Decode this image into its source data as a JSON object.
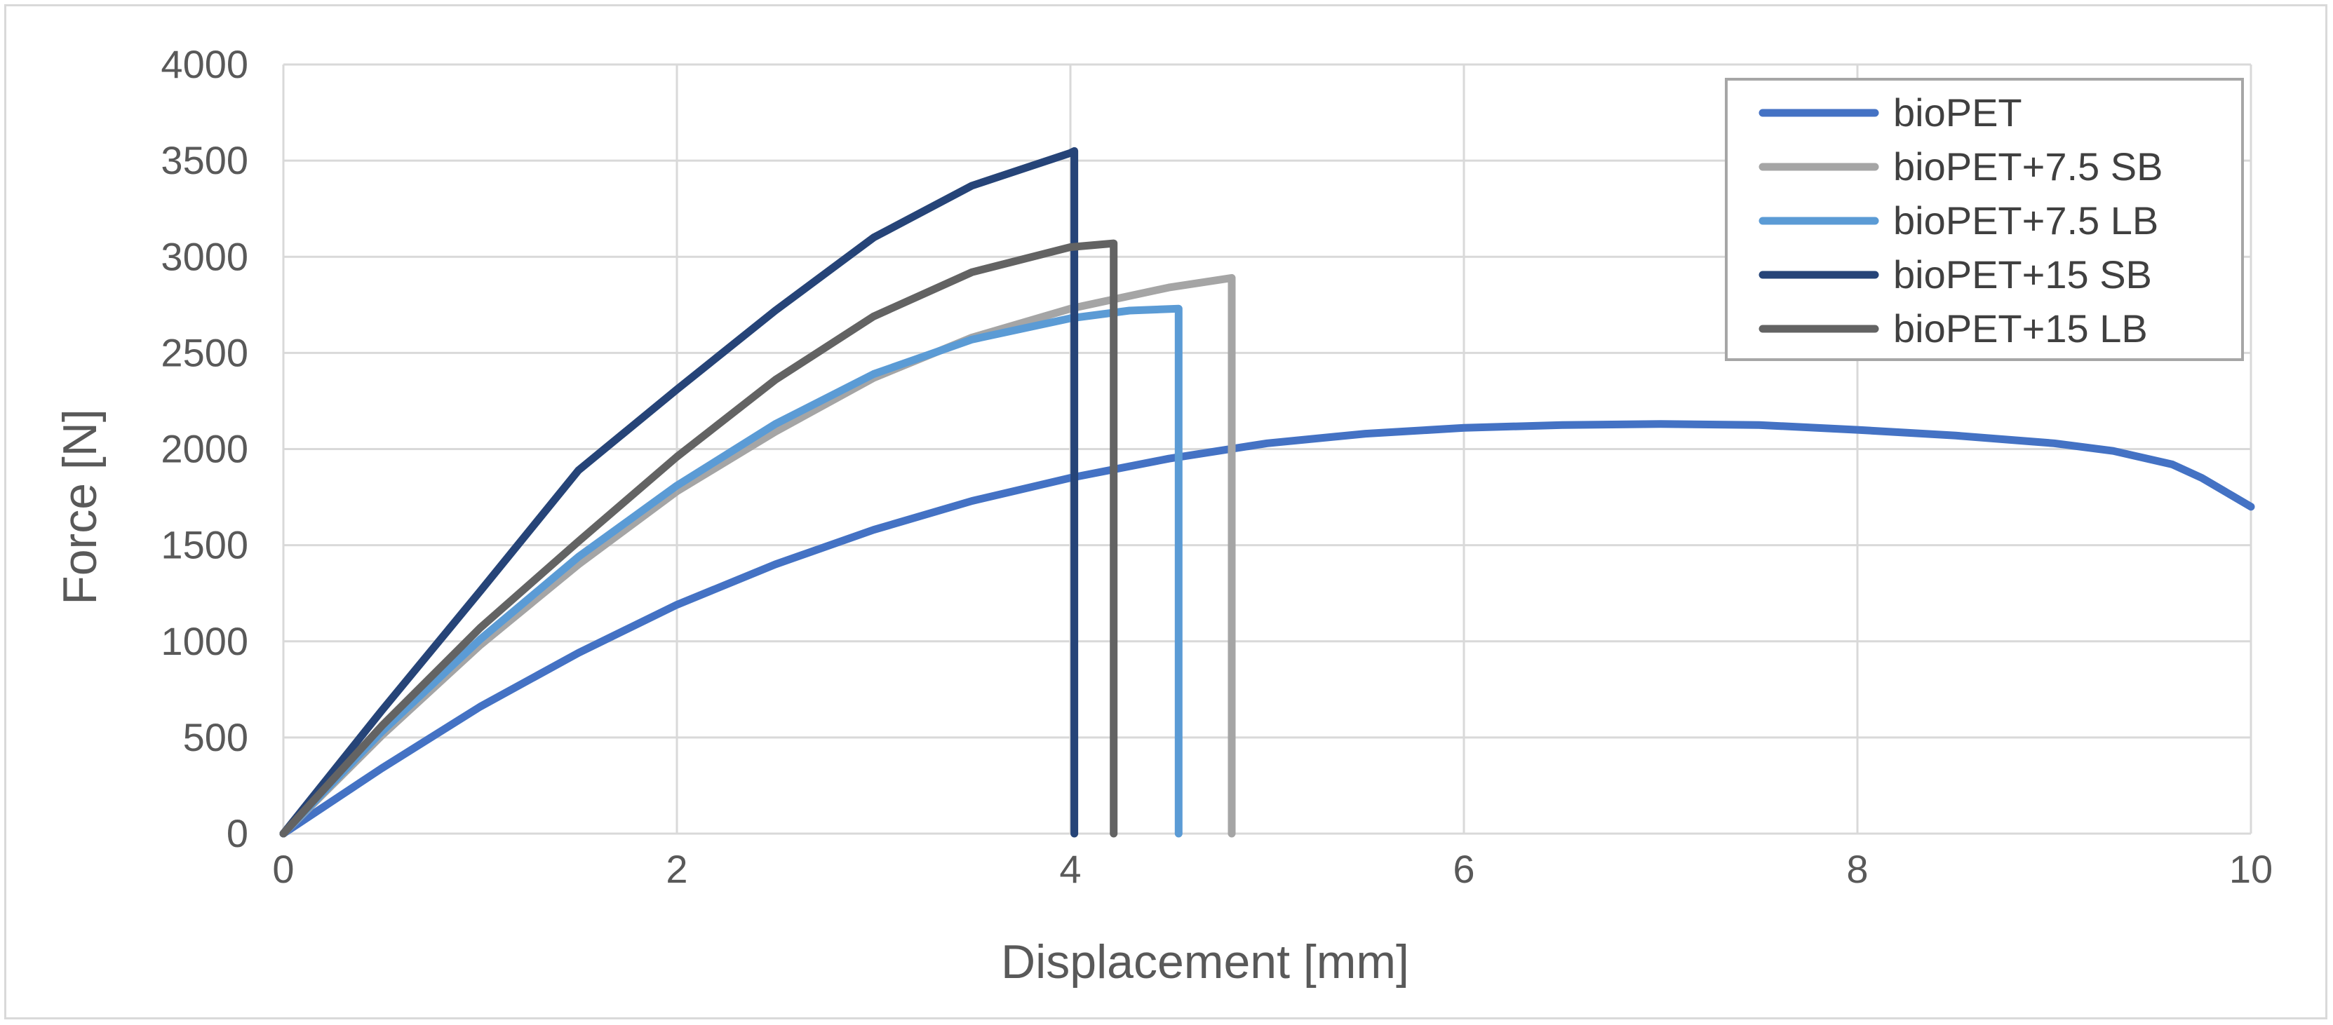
{
  "chart_data": {
    "type": "line",
    "xlabel": "Displacement [mm]",
    "ylabel": "Force [N]",
    "xlim": [
      0,
      10
    ],
    "ylim": [
      0,
      4000
    ],
    "xticks": [
      0,
      2,
      4,
      6,
      8,
      10
    ],
    "yticks": [
      0,
      500,
      1000,
      1500,
      2000,
      2500,
      3000,
      3500,
      4000
    ],
    "grid": true,
    "legend_position": "top-right",
    "series": [
      {
        "name": "bioPET",
        "color": "#4472c4",
        "x": [
          0,
          0.5,
          1,
          1.5,
          2,
          2.5,
          3,
          3.5,
          4,
          4.5,
          5,
          5.5,
          6,
          6.5,
          7,
          7.5,
          8,
          8.5,
          9,
          9.3,
          9.6,
          9.75,
          9.9,
          10
        ],
        "y": [
          0,
          340,
          660,
          940,
          1190,
          1400,
          1580,
          1730,
          1850,
          1950,
          2030,
          2080,
          2110,
          2125,
          2130,
          2125,
          2100,
          2070,
          2030,
          1990,
          1920,
          1850,
          1760,
          1700
        ]
      },
      {
        "name": "bioPET+7.5 SB",
        "color": "#a5a5a5",
        "x": [
          0,
          0.5,
          1,
          1.5,
          2,
          2.5,
          3,
          3.5,
          4,
          4.5,
          4.82,
          4.82
        ],
        "y": [
          0,
          510,
          980,
          1400,
          1780,
          2090,
          2370,
          2580,
          2730,
          2840,
          2890,
          0
        ]
      },
      {
        "name": "bioPET+7.5 LB",
        "color": "#5b9bd5",
        "x": [
          0,
          0.5,
          1,
          1.5,
          2,
          2.5,
          3,
          3.5,
          4,
          4.3,
          4.55,
          4.55
        ],
        "y": [
          0,
          530,
          1010,
          1440,
          1810,
          2130,
          2390,
          2570,
          2680,
          2720,
          2730,
          0
        ]
      },
      {
        "name": "bioPET+15 SB",
        "color": "#264478",
        "x": [
          0,
          0.5,
          1,
          1.5,
          2,
          2.5,
          3,
          3.5,
          4,
          4.02,
          4.02
        ],
        "y": [
          0,
          640,
          1260,
          1890,
          2310,
          2720,
          3100,
          3370,
          3540,
          3550,
          0
        ]
      },
      {
        "name": "bioPET+15 LB",
        "color": "#636363",
        "x": [
          0,
          0.5,
          1,
          1.5,
          2,
          2.5,
          3,
          3.5,
          4,
          4.22,
          4.22
        ],
        "y": [
          0,
          560,
          1070,
          1520,
          1960,
          2360,
          2690,
          2920,
          3050,
          3070,
          0
        ]
      }
    ]
  }
}
